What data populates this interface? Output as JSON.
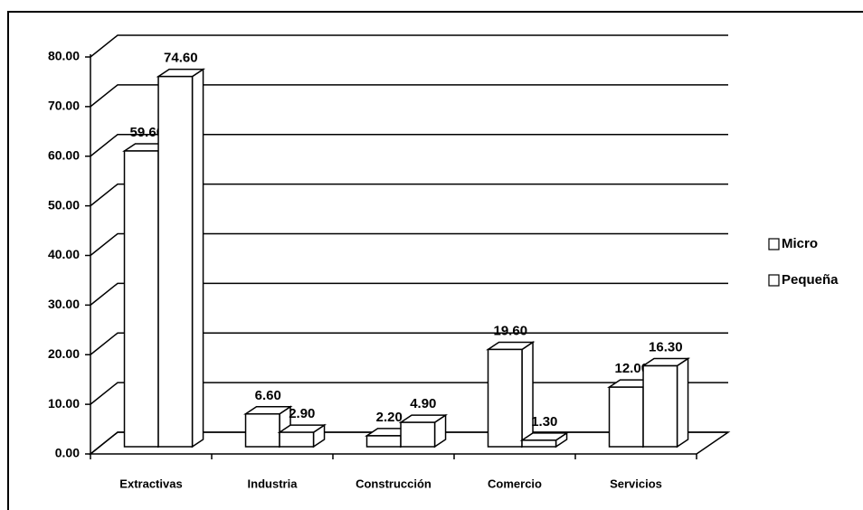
{
  "chart_data": {
    "type": "bar3d",
    "categories": [
      "Extractivas",
      "Industria",
      "Construcción",
      "Comercio",
      "Servicios"
    ],
    "series": [
      {
        "name": "Micro",
        "color": "#ffffff",
        "values": [
          59.6,
          6.6,
          2.2,
          19.6,
          12.0
        ],
        "value_labels": [
          "59.60",
          "6.60",
          "2.20",
          "19.60",
          "12.00"
        ]
      },
      {
        "name": "Pequeña",
        "color": "#ffffff",
        "values": [
          74.6,
          2.9,
          4.9,
          1.3,
          16.3
        ],
        "value_labels": [
          "74.60",
          "2.90",
          "4.90",
          "1.30",
          "16.30"
        ]
      }
    ],
    "ylim": [
      0,
      80
    ],
    "yticks": [
      {
        "value": 0,
        "label": "0.00"
      },
      {
        "value": 10,
        "label": "10.00"
      },
      {
        "value": 20,
        "label": "20.00"
      },
      {
        "value": 30,
        "label": "30.00"
      },
      {
        "value": 40,
        "label": "40.00"
      },
      {
        "value": 50,
        "label": "50.00"
      },
      {
        "value": 60,
        "label": "60.00"
      },
      {
        "value": 70,
        "label": "70.00"
      },
      {
        "value": 80,
        "label": "80.00"
      }
    ],
    "grid": true,
    "legend": "right"
  }
}
